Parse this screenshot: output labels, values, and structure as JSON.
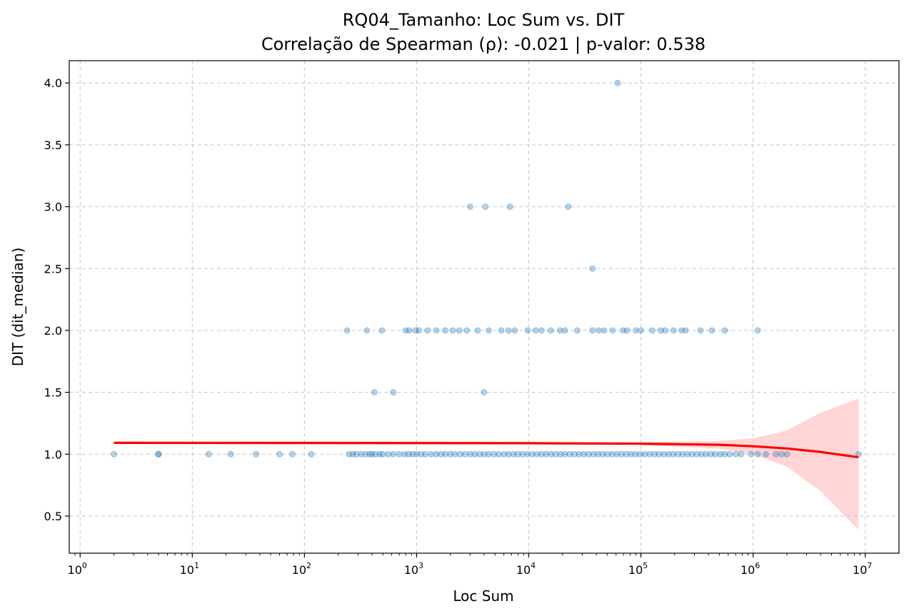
{
  "chart_data": {
    "type": "scatter",
    "title": "RQ04_Tamanho: Loc Sum vs. DIT",
    "subtitle": "Correlação de Spearman (ρ): -0.021 | p-valor: 0.538",
    "xlabel": "Loc Sum",
    "ylabel": "DIT (dit_median)",
    "xscale": "log",
    "xlim": [
      0.8,
      20000000
    ],
    "ylim": [
      0.2,
      4.18
    ],
    "x_ticks": [
      {
        "value": 1,
        "base": "10",
        "exp": "0"
      },
      {
        "value": 10,
        "base": "10",
        "exp": "1"
      },
      {
        "value": 100,
        "base": "10",
        "exp": "2"
      },
      {
        "value": 1000,
        "base": "10",
        "exp": "3"
      },
      {
        "value": 10000,
        "base": "10",
        "exp": "4"
      },
      {
        "value": 100000,
        "base": "10",
        "exp": "5"
      },
      {
        "value": 1000000,
        "base": "10",
        "exp": "6"
      },
      {
        "value": 10000000,
        "base": "10",
        "exp": "7"
      }
    ],
    "y_ticks": [
      "0.5",
      "1.0",
      "1.5",
      "2.0",
      "2.5",
      "3.0",
      "3.5",
      "4.0"
    ],
    "grid": true,
    "colors": {
      "points": "#1f77b4",
      "trend_line": "#ff0000",
      "confidence_band": "#ffb3b3"
    },
    "points": [
      {
        "x": 2,
        "y": 1.0
      },
      {
        "x": 5,
        "y": 1.0
      },
      {
        "x": 5,
        "y": 1.0
      },
      {
        "x": 14,
        "y": 1.0
      },
      {
        "x": 22,
        "y": 1.0
      },
      {
        "x": 37,
        "y": 1.0
      },
      {
        "x": 60,
        "y": 1.0
      },
      {
        "x": 78,
        "y": 1.0
      },
      {
        "x": 115,
        "y": 1.0
      },
      {
        "x": 250,
        "y": 1.0
      },
      {
        "x": 270,
        "y": 1.0
      },
      {
        "x": 290,
        "y": 1.0
      },
      {
        "x": 320,
        "y": 1.0
      },
      {
        "x": 350,
        "y": 1.0
      },
      {
        "x": 380,
        "y": 1.0
      },
      {
        "x": 400,
        "y": 1.0
      },
      {
        "x": 430,
        "y": 1.0
      },
      {
        "x": 470,
        "y": 1.0
      },
      {
        "x": 500,
        "y": 1.0
      },
      {
        "x": 560,
        "y": 1.0
      },
      {
        "x": 620,
        "y": 1.0
      },
      {
        "x": 700,
        "y": 1.0
      },
      {
        "x": 780,
        "y": 1.0
      },
      {
        "x": 850,
        "y": 1.0
      },
      {
        "x": 920,
        "y": 1.0
      },
      {
        "x": 1000,
        "y": 1.0
      },
      {
        "x": 1100,
        "y": 1.0
      },
      {
        "x": 1200,
        "y": 1.0
      },
      {
        "x": 1350,
        "y": 1.0
      },
      {
        "x": 1500,
        "y": 1.0
      },
      {
        "x": 1650,
        "y": 1.0
      },
      {
        "x": 1800,
        "y": 1.0
      },
      {
        "x": 2000,
        "y": 1.0
      },
      {
        "x": 2200,
        "y": 1.0
      },
      {
        "x": 2450,
        "y": 1.0
      },
      {
        "x": 2700,
        "y": 1.0
      },
      {
        "x": 3000,
        "y": 1.0
      },
      {
        "x": 3300,
        "y": 1.0
      },
      {
        "x": 3650,
        "y": 1.0
      },
      {
        "x": 4000,
        "y": 1.0
      },
      {
        "x": 4400,
        "y": 1.0
      },
      {
        "x": 4900,
        "y": 1.0
      },
      {
        "x": 5400,
        "y": 1.0
      },
      {
        "x": 6000,
        "y": 1.0
      },
      {
        "x": 6600,
        "y": 1.0
      },
      {
        "x": 7300,
        "y": 1.0
      },
      {
        "x": 8000,
        "y": 1.0
      },
      {
        "x": 8800,
        "y": 1.0
      },
      {
        "x": 9700,
        "y": 1.0
      },
      {
        "x": 10700,
        "y": 1.0
      },
      {
        "x": 11800,
        "y": 1.0
      },
      {
        "x": 13000,
        "y": 1.0
      },
      {
        "x": 14300,
        "y": 1.0
      },
      {
        "x": 15800,
        "y": 1.0
      },
      {
        "x": 17400,
        "y": 1.0
      },
      {
        "x": 19200,
        "y": 1.0
      },
      {
        "x": 21000,
        "y": 1.0
      },
      {
        "x": 23200,
        "y": 1.0
      },
      {
        "x": 25500,
        "y": 1.0
      },
      {
        "x": 28100,
        "y": 1.0
      },
      {
        "x": 31000,
        "y": 1.0
      },
      {
        "x": 34100,
        "y": 1.0
      },
      {
        "x": 37600,
        "y": 1.0
      },
      {
        "x": 41400,
        "y": 1.0
      },
      {
        "x": 45600,
        "y": 1.0
      },
      {
        "x": 50200,
        "y": 1.0
      },
      {
        "x": 55300,
        "y": 1.0
      },
      {
        "x": 60900,
        "y": 1.0
      },
      {
        "x": 67100,
        "y": 1.0
      },
      {
        "x": 73900,
        "y": 1.0
      },
      {
        "x": 81400,
        "y": 1.0
      },
      {
        "x": 89600,
        "y": 1.0
      },
      {
        "x": 98700,
        "y": 1.0
      },
      {
        "x": 108700,
        "y": 1.0
      },
      {
        "x": 119700,
        "y": 1.0
      },
      {
        "x": 131800,
        "y": 1.0
      },
      {
        "x": 145200,
        "y": 1.0
      },
      {
        "x": 160000,
        "y": 1.0
      },
      {
        "x": 176000,
        "y": 1.0
      },
      {
        "x": 194000,
        "y": 1.0
      },
      {
        "x": 214000,
        "y": 1.0
      },
      {
        "x": 235000,
        "y": 1.0
      },
      {
        "x": 259000,
        "y": 1.0
      },
      {
        "x": 285000,
        "y": 1.0
      },
      {
        "x": 314000,
        "y": 1.0
      },
      {
        "x": 346000,
        "y": 1.0
      },
      {
        "x": 381000,
        "y": 1.0
      },
      {
        "x": 420000,
        "y": 1.0
      },
      {
        "x": 460000,
        "y": 1.0
      },
      {
        "x": 510000,
        "y": 1.0
      },
      {
        "x": 560000,
        "y": 1.0
      },
      {
        "x": 620000,
        "y": 1.0
      },
      {
        "x": 700000,
        "y": 1.0
      },
      {
        "x": 780000,
        "y": 1.0
      },
      {
        "x": 960000,
        "y": 1.0
      },
      {
        "x": 1100000,
        "y": 1.0
      },
      {
        "x": 1300000,
        "y": 1.0
      },
      {
        "x": 1600000,
        "y": 1.0
      },
      {
        "x": 1800000,
        "y": 1.0
      },
      {
        "x": 2000000,
        "y": 1.0
      },
      {
        "x": 8700000,
        "y": 1.0
      },
      {
        "x": 420,
        "y": 1.5
      },
      {
        "x": 620,
        "y": 1.5
      },
      {
        "x": 4000,
        "y": 1.5
      },
      {
        "x": 240,
        "y": 2.0
      },
      {
        "x": 360,
        "y": 2.0
      },
      {
        "x": 490,
        "y": 2.0
      },
      {
        "x": 800,
        "y": 2.0
      },
      {
        "x": 860,
        "y": 2.0
      },
      {
        "x": 980,
        "y": 2.0
      },
      {
        "x": 1050,
        "y": 2.0
      },
      {
        "x": 1250,
        "y": 2.0
      },
      {
        "x": 1500,
        "y": 2.0
      },
      {
        "x": 1800,
        "y": 2.0
      },
      {
        "x": 2100,
        "y": 2.0
      },
      {
        "x": 2400,
        "y": 2.0
      },
      {
        "x": 2800,
        "y": 2.0
      },
      {
        "x": 3500,
        "y": 2.0
      },
      {
        "x": 4400,
        "y": 2.0
      },
      {
        "x": 5700,
        "y": 2.0
      },
      {
        "x": 6600,
        "y": 2.0
      },
      {
        "x": 7500,
        "y": 2.0
      },
      {
        "x": 9800,
        "y": 2.0
      },
      {
        "x": 11500,
        "y": 2.0
      },
      {
        "x": 13000,
        "y": 2.0
      },
      {
        "x": 15700,
        "y": 2.0
      },
      {
        "x": 19000,
        "y": 2.0
      },
      {
        "x": 21000,
        "y": 2.0
      },
      {
        "x": 27000,
        "y": 2.0
      },
      {
        "x": 37000,
        "y": 2.0
      },
      {
        "x": 42000,
        "y": 2.0
      },
      {
        "x": 47000,
        "y": 2.0
      },
      {
        "x": 56000,
        "y": 2.0
      },
      {
        "x": 69000,
        "y": 2.0
      },
      {
        "x": 75000,
        "y": 2.0
      },
      {
        "x": 90000,
        "y": 2.0
      },
      {
        "x": 100000,
        "y": 2.0
      },
      {
        "x": 126000,
        "y": 2.0
      },
      {
        "x": 150000,
        "y": 2.0
      },
      {
        "x": 165000,
        "y": 2.0
      },
      {
        "x": 195000,
        "y": 2.0
      },
      {
        "x": 230000,
        "y": 2.0
      },
      {
        "x": 250000,
        "y": 2.0
      },
      {
        "x": 340000,
        "y": 2.0
      },
      {
        "x": 430000,
        "y": 2.0
      },
      {
        "x": 560000,
        "y": 2.0
      },
      {
        "x": 1100000,
        "y": 2.0
      },
      {
        "x": 37000,
        "y": 2.5
      },
      {
        "x": 3000,
        "y": 3.0
      },
      {
        "x": 4100,
        "y": 3.0
      },
      {
        "x": 6800,
        "y": 3.0
      },
      {
        "x": 22500,
        "y": 3.0
      },
      {
        "x": 62000,
        "y": 4.0
      }
    ],
    "trend_line": [
      {
        "x": 2,
        "y": 1.092
      },
      {
        "x": 100,
        "y": 1.091
      },
      {
        "x": 10000,
        "y": 1.089
      },
      {
        "x": 100000,
        "y": 1.085
      },
      {
        "x": 500000,
        "y": 1.076
      },
      {
        "x": 1000000,
        "y": 1.064
      },
      {
        "x": 2000000,
        "y": 1.046
      },
      {
        "x": 4000000,
        "y": 1.018
      },
      {
        "x": 8700000,
        "y": 0.975
      }
    ],
    "confidence_band": [
      {
        "x": 2,
        "lower": 1.082,
        "upper": 1.102
      },
      {
        "x": 1000,
        "lower": 1.081,
        "upper": 1.097
      },
      {
        "x": 100000,
        "lower": 1.074,
        "upper": 1.096
      },
      {
        "x": 500000,
        "lower": 1.045,
        "upper": 1.107
      },
      {
        "x": 1000000,
        "lower": 1.0,
        "upper": 1.128
      },
      {
        "x": 2000000,
        "lower": 0.9,
        "upper": 1.192
      },
      {
        "x": 4000000,
        "lower": 0.7,
        "upper": 1.336
      },
      {
        "x": 8700000,
        "lower": 0.39,
        "upper": 1.45
      }
    ]
  }
}
